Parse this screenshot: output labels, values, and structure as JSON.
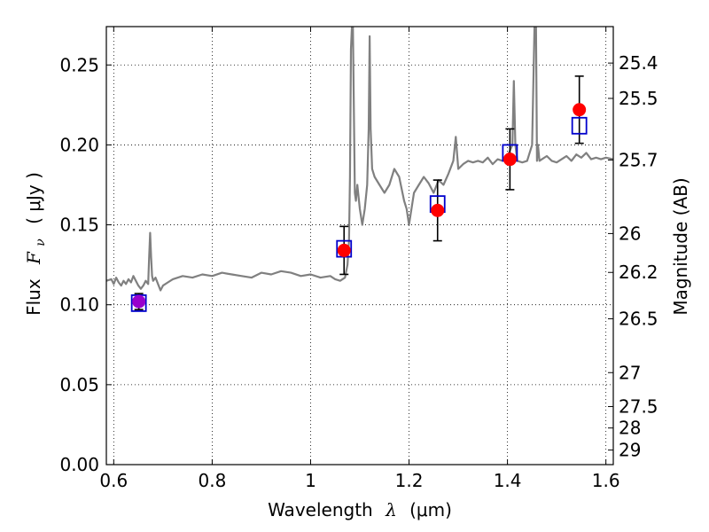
{
  "chart_data": {
    "type": "scatter",
    "xlabel": "Wavelength λ (μm)",
    "ylabel": "Flux F_ν ( μJy )",
    "ylabel_parts": {
      "prefix": "Flux",
      "symbol": "F",
      "subscript": "ν",
      "unit": "( μJy )"
    },
    "xlabel_parts": {
      "prefix": "Wavelength",
      "symbol": "λ",
      "unit": "(μm)"
    },
    "y2label": "Magnitude (AB)",
    "xlim": [
      0.585,
      1.615
    ],
    "ylim": [
      0.0,
      0.274
    ],
    "x_ticks": [
      0.6,
      0.8,
      1.0,
      1.2,
      1.4,
      1.6
    ],
    "x_tick_labels": [
      "0.6",
      "0.8",
      "1",
      "1.2",
      "1.4",
      "1.6"
    ],
    "y_ticks": [
      0.0,
      0.05,
      0.1,
      0.15,
      0.2,
      0.25
    ],
    "y_tick_labels": [
      "0.00",
      "0.05",
      "0.10",
      "0.15",
      "0.20",
      "0.25"
    ],
    "y2_ticks": [
      25.4,
      25.5,
      25.7,
      26,
      26.2,
      26.5,
      27,
      27.5,
      28,
      29
    ],
    "y2_tick_labels": [
      "25.4",
      "25.5",
      "25.7",
      "26",
      "26.2",
      "26.5",
      "27",
      "27.5",
      "28",
      "29"
    ],
    "grid": true,
    "colors": {
      "spectrum": "#808080",
      "model": "#0000cc",
      "observed": "#ff0000",
      "first_point": "#9900cc",
      "errorbar": "#000000"
    },
    "series": [
      {
        "kind": "line",
        "x": [
          0.585,
          0.595,
          0.6,
          0.605,
          0.61,
          0.615,
          0.62,
          0.625,
          0.63,
          0.635,
          0.64,
          0.645,
          0.65,
          0.655,
          0.66,
          0.665,
          0.67,
          0.672,
          0.674,
          0.676,
          0.678,
          0.68,
          0.685,
          0.69,
          0.695,
          0.7,
          0.71,
          0.72,
          0.74,
          0.76,
          0.78,
          0.8,
          0.82,
          0.84,
          0.86,
          0.88,
          0.9,
          0.92,
          0.94,
          0.96,
          0.98,
          1.0,
          1.02,
          1.04,
          1.05,
          1.06,
          1.07,
          1.075,
          1.078,
          1.08,
          1.082,
          1.084,
          1.086,
          1.09,
          1.092,
          1.095,
          1.1,
          1.105,
          1.11,
          1.115,
          1.118,
          1.12,
          1.122,
          1.125,
          1.13,
          1.14,
          1.15,
          1.16,
          1.17,
          1.18,
          1.19,
          1.195,
          1.2,
          1.21,
          1.22,
          1.23,
          1.24,
          1.25,
          1.26,
          1.27,
          1.28,
          1.29,
          1.295,
          1.3,
          1.31,
          1.32,
          1.33,
          1.34,
          1.35,
          1.36,
          1.37,
          1.38,
          1.39,
          1.4,
          1.41,
          1.413,
          1.416,
          1.42,
          1.43,
          1.44,
          1.45,
          1.455,
          1.458,
          1.46,
          1.462,
          1.465,
          1.47,
          1.48,
          1.49,
          1.5,
          1.51,
          1.52,
          1.53,
          1.54,
          1.55,
          1.56,
          1.57,
          1.58,
          1.59,
          1.6,
          1.615
        ],
        "y": [
          0.115,
          0.116,
          0.113,
          0.117,
          0.114,
          0.112,
          0.115,
          0.113,
          0.116,
          0.114,
          0.118,
          0.115,
          0.112,
          0.11,
          0.112,
          0.115,
          0.113,
          0.13,
          0.145,
          0.13,
          0.118,
          0.115,
          0.117,
          0.113,
          0.109,
          0.112,
          0.114,
          0.116,
          0.118,
          0.117,
          0.119,
          0.118,
          0.12,
          0.119,
          0.118,
          0.117,
          0.12,
          0.119,
          0.121,
          0.12,
          0.118,
          0.119,
          0.117,
          0.118,
          0.116,
          0.115,
          0.117,
          0.125,
          0.14,
          0.18,
          0.26,
          0.274,
          0.274,
          0.17,
          0.165,
          0.175,
          0.16,
          0.15,
          0.16,
          0.175,
          0.21,
          0.268,
          0.21,
          0.185,
          0.18,
          0.175,
          0.17,
          0.175,
          0.185,
          0.18,
          0.165,
          0.16,
          0.15,
          0.17,
          0.175,
          0.18,
          0.176,
          0.17,
          0.178,
          0.175,
          0.182,
          0.19,
          0.205,
          0.185,
          0.188,
          0.19,
          0.189,
          0.19,
          0.189,
          0.192,
          0.188,
          0.191,
          0.19,
          0.193,
          0.2,
          0.24,
          0.2,
          0.19,
          0.189,
          0.19,
          0.2,
          0.274,
          0.274,
          0.19,
          0.2,
          0.19,
          0.191,
          0.193,
          0.19,
          0.189,
          0.191,
          0.193,
          0.19,
          0.194,
          0.192,
          0.195,
          0.191,
          0.192,
          0.191,
          0.192,
          0.191
        ]
      },
      {
        "kind": "model-squares",
        "x": [
          0.651,
          1.068,
          1.258,
          1.405,
          1.546
        ],
        "y": [
          0.101,
          0.135,
          0.163,
          0.195,
          0.212
        ]
      },
      {
        "kind": "observed-points",
        "x": [
          0.651,
          1.068,
          1.258,
          1.405,
          1.546
        ],
        "y": [
          0.102,
          0.134,
          0.159,
          0.191,
          0.222
        ],
        "yerr": [
          0.005,
          0.015,
          0.019,
          0.019,
          0.021
        ],
        "color_override_first": true
      }
    ]
  }
}
